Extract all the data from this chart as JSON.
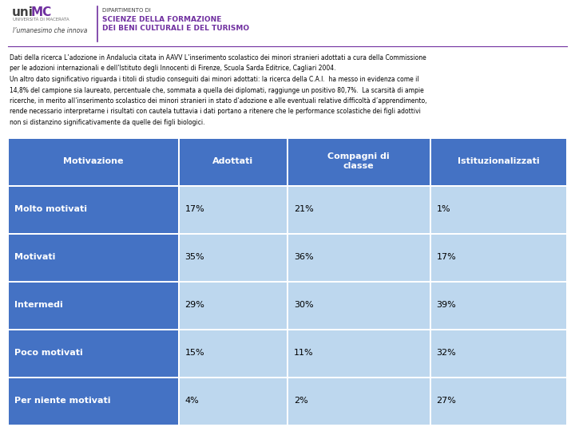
{
  "header_text_line1": "Dati della ricerca L’adozione in Andalucìa citata in AAVV L’inserimento scolastico dei minori stranieri adottati a cura della Commissione",
  "header_text_line2": "per le adozioni internazionali e dell’Istituto degli Innocenti di Firenze, Scuola Sarda Editrice, Cagliari 2004.",
  "header_text_line3": "Un altro dato significativo riguarda i titoli di studio conseguiti dai minori adottati: la ricerca della C.A.I.  ha messo in evidenza come il",
  "header_text_line4": "14,8% del campione sia laureato, percentuale che, sommata a quella dei diplomati, raggiunge un positivo 80,7%.  La scarsità di ampie",
  "header_text_line5": "ricerche, in merito all’inserimento scolastico dei minori stranieri in stato d’adozione e alle eventuali relative difficoltà d’apprendimento,",
  "header_text_line6": "rende necessario interpretarne i risultati con cautela tuttavia i dati portano a ritenere che le performance scolastiche dei figli adottivi",
  "header_text_line7": "non si distanzino significativamente da quelle dei figli biologici.",
  "col_headers": [
    "Motivazione",
    "Adottati",
    "Compagni di\nclasse",
    "Istituzionalizzati"
  ],
  "rows": [
    [
      "Molto motivati",
      "17%",
      "21%",
      "1%"
    ],
    [
      "Motivati",
      "35%",
      "36%",
      "17%"
    ],
    [
      "Intermedi",
      "29%",
      "30%",
      "39%"
    ],
    [
      "Poco motivati",
      "15%",
      "11%",
      "32%"
    ],
    [
      "Per niente motivati",
      "4%",
      "2%",
      "27%"
    ]
  ],
  "header_bg": "#4472C4",
  "row_label_bg": "#4472C4",
  "data_cell_bg": "#BDD7EE",
  "header_text_color": "#FFFFFF",
  "row_label_text_color": "#FFFFFF",
  "data_text_color": "#000000",
  "dept_line1": "DIPARTIMENTO DI",
  "dept_line2": "SCIENZE DELLA FORMAZIONE",
  "dept_line3": "DEI BENI CULTURALI E DEL TURISMO",
  "slogan": "l’umanesimo che innova",
  "purple_color": "#7030A0",
  "dark_gray": "#404040"
}
